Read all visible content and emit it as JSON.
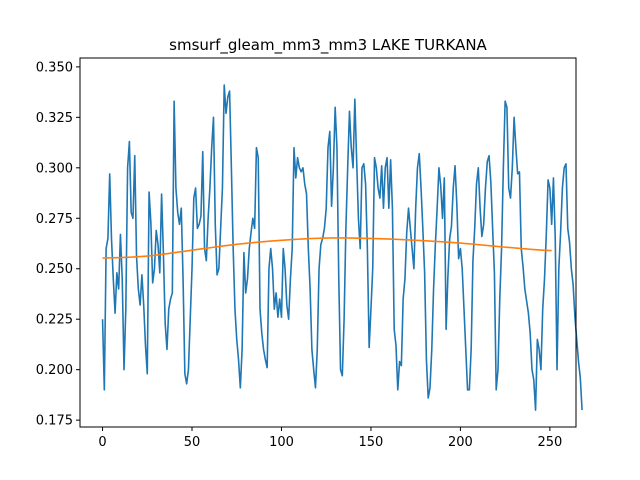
{
  "chart_data": {
    "type": "line",
    "title": "smsurf_gleam_mm3_mm3 LAKE TURKANA",
    "xlabel": "",
    "ylabel": "",
    "xlim": [
      -12.6,
      264.6
    ],
    "ylim": [
      0.1716,
      0.3544
    ],
    "grid": false,
    "x_ticks": [
      0,
      50,
      100,
      150,
      200,
      250
    ],
    "x_tick_labels": [
      "0",
      "50",
      "100",
      "150",
      "200",
      "250"
    ],
    "y_ticks": [
      0.175,
      0.2,
      0.225,
      0.25,
      0.275,
      0.3,
      0.325,
      0.35
    ],
    "y_tick_labels": [
      "0.175",
      "0.200",
      "0.225",
      "0.250",
      "0.275",
      "0.300",
      "0.325",
      "0.350"
    ],
    "series": [
      {
        "color": "#1f77b4",
        "x_start": 0,
        "x_step": 1,
        "values": [
          0.225,
          0.19,
          0.26,
          0.265,
          0.297,
          0.265,
          0.245,
          0.228,
          0.248,
          0.24,
          0.267,
          0.245,
          0.2,
          0.23,
          0.3,
          0.313,
          0.278,
          0.275,
          0.306,
          0.256,
          0.24,
          0.232,
          0.247,
          0.232,
          0.212,
          0.198,
          0.288,
          0.273,
          0.243,
          0.25,
          0.269,
          0.262,
          0.248,
          0.287,
          0.258,
          0.223,
          0.21,
          0.23,
          0.235,
          0.238,
          0.333,
          0.29,
          0.278,
          0.272,
          0.28,
          0.245,
          0.198,
          0.193,
          0.2,
          0.225,
          0.25,
          0.285,
          0.29,
          0.27,
          0.272,
          0.276,
          0.308,
          0.26,
          0.254,
          0.275,
          0.29,
          0.31,
          0.325,
          0.272,
          0.247,
          0.25,
          0.27,
          0.29,
          0.341,
          0.327,
          0.335,
          0.338,
          0.3,
          0.26,
          0.23,
          0.215,
          0.205,
          0.191,
          0.21,
          0.258,
          0.238,
          0.245,
          0.26,
          0.268,
          0.275,
          0.27,
          0.31,
          0.305,
          0.23,
          0.218,
          0.21,
          0.205,
          0.201,
          0.25,
          0.26,
          0.25,
          0.23,
          0.238,
          0.226,
          0.235,
          0.226,
          0.26,
          0.25,
          0.232,
          0.225,
          0.245,
          0.26,
          0.31,
          0.295,
          0.305,
          0.3,
          0.298,
          0.3,
          0.292,
          0.287,
          0.26,
          0.24,
          0.21,
          0.2,
          0.191,
          0.21,
          0.25,
          0.262,
          0.265,
          0.27,
          0.28,
          0.31,
          0.318,
          0.281,
          0.3,
          0.33,
          0.31,
          0.246,
          0.2,
          0.197,
          0.225,
          0.27,
          0.3,
          0.328,
          0.31,
          0.3,
          0.334,
          0.304,
          0.275,
          0.26,
          0.3,
          0.302,
          0.292,
          0.26,
          0.211,
          0.23,
          0.25,
          0.305,
          0.3,
          0.29,
          0.285,
          0.301,
          0.28,
          0.3,
          0.305,
          0.28,
          0.304,
          0.28,
          0.22,
          0.212,
          0.19,
          0.204,
          0.202,
          0.235,
          0.245,
          0.268,
          0.28,
          0.27,
          0.26,
          0.25,
          0.28,
          0.3,
          0.307,
          0.29,
          0.27,
          0.248,
          0.205,
          0.186,
          0.191,
          0.21,
          0.24,
          0.262,
          0.28,
          0.3,
          0.291,
          0.275,
          0.295,
          0.22,
          0.246,
          0.265,
          0.271,
          0.29,
          0.301,
          0.282,
          0.255,
          0.26,
          0.25,
          0.23,
          0.21,
          0.19,
          0.19,
          0.21,
          0.254,
          0.27,
          0.292,
          0.3,
          0.28,
          0.266,
          0.272,
          0.29,
          0.303,
          0.306,
          0.293,
          0.27,
          0.248,
          0.19,
          0.2,
          0.235,
          0.26,
          0.3,
          0.333,
          0.33,
          0.29,
          0.285,
          0.3,
          0.325,
          0.31,
          0.297,
          0.298,
          0.26,
          0.251,
          0.24,
          0.234,
          0.228,
          0.218,
          0.2,
          0.195,
          0.18,
          0.215,
          0.21,
          0.2,
          0.23,
          0.245,
          0.267,
          0.294,
          0.29,
          0.272,
          0.295,
          0.265,
          0.2,
          0.25,
          0.268,
          0.29,
          0.3,
          0.302,
          0.27,
          0.263,
          0.25,
          0.242,
          0.226,
          0.215,
          0.204,
          0.196,
          0.18
        ],
        "fit_note": "sampled"
      },
      {
        "color": "#ff7f0e",
        "x_start": 0,
        "x_step": 1,
        "smooth_points": [
          [
            0,
            0.2553
          ],
          [
            25,
            0.2563
          ],
          [
            50,
            0.2592
          ],
          [
            75,
            0.2621
          ],
          [
            100,
            0.2641
          ],
          [
            125,
            0.2652
          ],
          [
            150,
            0.265
          ],
          [
            175,
            0.2641
          ],
          [
            200,
            0.2627
          ],
          [
            225,
            0.2607
          ],
          [
            251,
            0.259
          ]
        ]
      }
    ]
  }
}
